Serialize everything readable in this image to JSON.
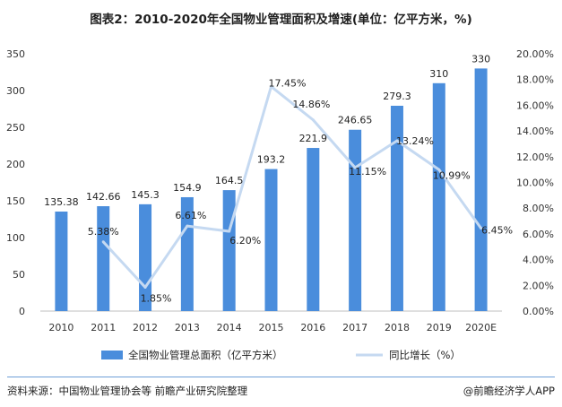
{
  "title": "图表2：2010-2020年全国物业管理面积及增速(单位：亿平方米，%)",
  "footer": {
    "source": "资料来源：中国物业管理协会等  前瞻产业研究院整理",
    "brand": "@前瞻经济学人APP"
  },
  "chart_data": {
    "type": "bar",
    "categories": [
      "2010",
      "2011",
      "2012",
      "2013",
      "2014",
      "2015",
      "2016",
      "2017",
      "2018",
      "2019",
      "2020E"
    ],
    "series": [
      {
        "name": "全国物业管理总面积（亿平方米）",
        "type": "bar",
        "axis": "left",
        "color": "#4a8ddc",
        "values": [
          135.38,
          142.66,
          145.3,
          154.9,
          164.5,
          193.2,
          221.9,
          246.65,
          279.3,
          310,
          330
        ],
        "labels": [
          "135.38",
          "142.66",
          "145.3",
          "154.9",
          "164.5",
          "193.2",
          "221.9",
          "246.65",
          "279.3",
          "310",
          "330"
        ]
      },
      {
        "name": "同比增长（%）",
        "type": "line",
        "axis": "right",
        "color": "#c5d9f1",
        "values": [
          null,
          5.38,
          1.85,
          6.61,
          6.2,
          17.45,
          14.86,
          11.15,
          13.24,
          10.99,
          6.45
        ],
        "labels": [
          "",
          "5.38%",
          "1.85%",
          "6.61%",
          "6.20%",
          "17.45%",
          "14.86%",
          "11.15%",
          "13.24%",
          "10.99%",
          "6.45%"
        ]
      }
    ],
    "ylim": [
      0,
      350
    ],
    "yticks": [
      "0",
      "50",
      "100",
      "150",
      "200",
      "250",
      "300",
      "350"
    ],
    "y2lim": [
      0,
      20
    ],
    "y2ticks": [
      "0.00%",
      "2.00%",
      "4.00%",
      "6.00%",
      "8.00%",
      "10.00%",
      "12.00%",
      "14.00%",
      "16.00%",
      "18.00%",
      "20.00%"
    ],
    "grid": false,
    "legend": "bottom"
  }
}
